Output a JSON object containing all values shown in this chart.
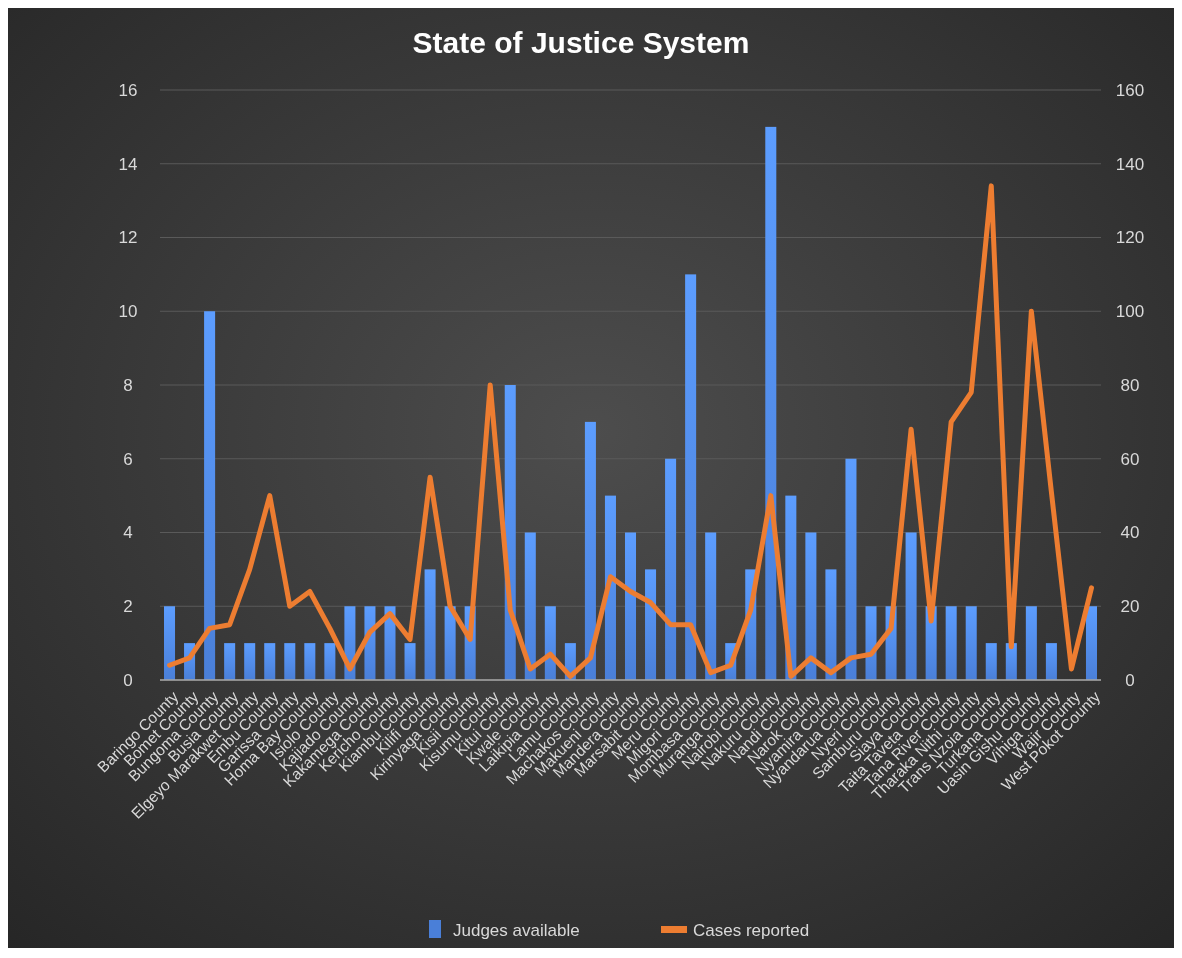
{
  "chart_data": {
    "type": "bar",
    "title": "State of Justice System",
    "categories": [
      "Baringo County",
      "Bomet County",
      "Bungoma County",
      "Busia County",
      "Elgeyo Marakwet County",
      "Embu County",
      "Garissa County",
      "Homa Bay County",
      "Isiolo County",
      "Kajiado County",
      "Kakamega County",
      "Kericho County",
      "Kiambu County",
      "Kilifi County",
      "Kirinyaga County",
      "Kisii County",
      "Kisumu County",
      "Kitui County",
      "Kwale County",
      "Laikipia County",
      "Lamu County",
      "Machakos County",
      "Makueni County",
      "Mandera County",
      "Marsabit County",
      "Meru County",
      "Migori County",
      "Mombasa County",
      "Muranga County",
      "Nairobi County",
      "Nakuru County",
      "Nandi County",
      "Narok County",
      "Nyamira County",
      "Nyandarua County",
      "Nyeri County",
      "Samburu County",
      "Siaya County",
      "Taita Taveta County",
      "Tana River County",
      "Tharaka Nithi County",
      "Trans Nzoia County",
      "Turkana County",
      "Uasin Gishu County",
      "Vihiga County",
      "Wajir County",
      "West Pokot County"
    ],
    "series": [
      {
        "name": "Judges available",
        "color": "#4a7fd8",
        "values": [
          2,
          1,
          10,
          1,
          1,
          1,
          1,
          1,
          1,
          2,
          2,
          2,
          1,
          3,
          2,
          2,
          0,
          8,
          4,
          2,
          1,
          7,
          5,
          4,
          3,
          6,
          11,
          4,
          1,
          3,
          15,
          5,
          4,
          3,
          6,
          2,
          2,
          4,
          2,
          2,
          2,
          1,
          1,
          2,
          1,
          0,
          2
        ]
      },
      {
        "name": "Cases reported",
        "type": "line",
        "axis": "y2",
        "color": "#ed7d31",
        "values": [
          4,
          6,
          14,
          15,
          30,
          50,
          20,
          24,
          14,
          3,
          13,
          18,
          11,
          55,
          20,
          11,
          80,
          19,
          3,
          7,
          1,
          6,
          28,
          24,
          21,
          15,
          15,
          2,
          4,
          19,
          50,
          1,
          6,
          2,
          6,
          7,
          14,
          68,
          16,
          70,
          78,
          134,
          9,
          100,
          51,
          3,
          25
        ]
      }
    ],
    "ylim": [
      0,
      16
    ],
    "yticks": [
      0,
      2,
      4,
      6,
      8,
      10,
      12,
      14,
      16
    ],
    "y2lim": [
      0,
      160
    ],
    "y2ticks": [
      0,
      20,
      40,
      60,
      80,
      100,
      120,
      140,
      160
    ],
    "grid": "y",
    "legend": "bottom"
  }
}
